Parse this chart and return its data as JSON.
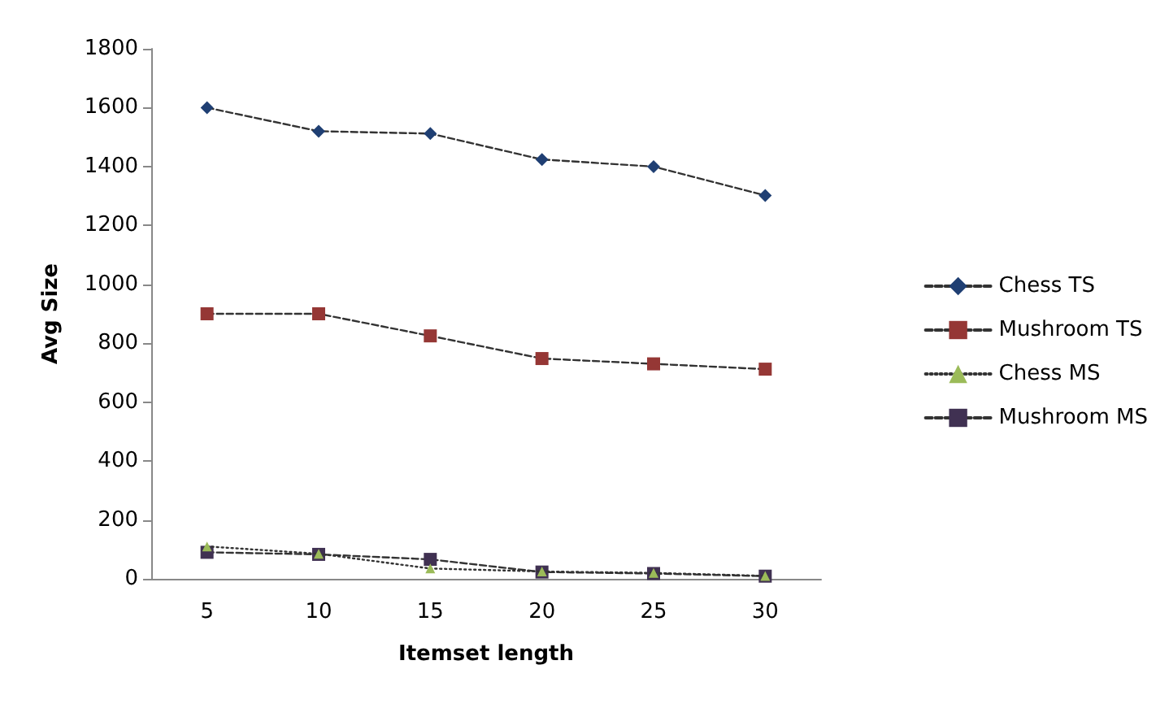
{
  "chart_data": {
    "type": "line",
    "xlabel": "Itemset length",
    "ylabel": "Avg Size",
    "categories": [
      "5",
      "10",
      "15",
      "20",
      "25",
      "30"
    ],
    "ylim": [
      0,
      1800
    ],
    "yticks": [
      0,
      200,
      400,
      600,
      800,
      1000,
      1200,
      1400,
      1600,
      1800
    ],
    "grid": false,
    "legend": "right",
    "series": [
      {
        "name": "Chess TS",
        "color": "#1f3f73",
        "marker": "diamond",
        "line_style": "dashed",
        "values": [
          1600,
          1520,
          1512,
          1424,
          1400,
          1302
        ]
      },
      {
        "name": "Mushroom TS",
        "color": "#953735",
        "marker": "square",
        "line_style": "dashed",
        "values": [
          900,
          900,
          825,
          748,
          730,
          712
        ]
      },
      {
        "name": "Chess MS",
        "color": "#9bbb59",
        "marker": "triangle",
        "line_style": "dotted",
        "values": [
          110,
          85,
          35,
          25,
          20,
          10
        ]
      },
      {
        "name": "Mushroom MS",
        "color": "#403152",
        "marker": "square",
        "line_style": "dashed",
        "values": [
          90,
          83,
          66,
          23,
          18,
          9
        ]
      }
    ]
  }
}
